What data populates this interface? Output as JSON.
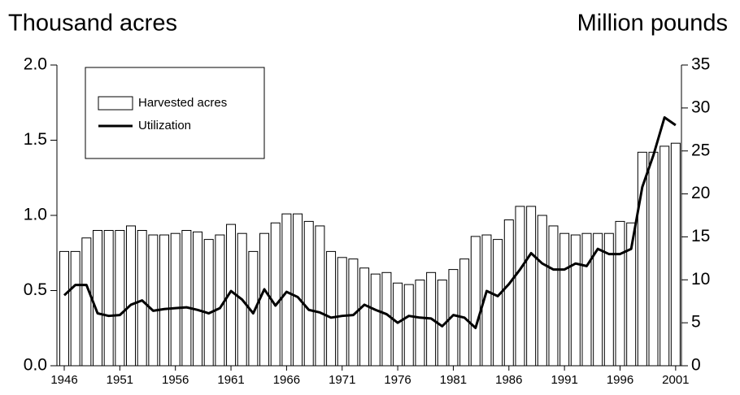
{
  "chart_data": {
    "type": "bar",
    "y_label": "Thousand acres",
    "y2_label": "Million pounds",
    "categories": [
      "1946",
      null,
      null,
      null,
      null,
      "1951",
      null,
      null,
      null,
      null,
      "1956",
      null,
      null,
      null,
      null,
      "1961",
      null,
      null,
      null,
      null,
      "1966",
      null,
      null,
      null,
      null,
      "1971",
      null,
      null,
      null,
      null,
      "1976",
      null,
      null,
      null,
      null,
      "1981",
      null,
      null,
      null,
      null,
      "1986",
      null,
      null,
      null,
      null,
      "1991",
      null,
      null,
      null,
      null,
      "1996",
      null,
      null,
      null,
      null,
      "2001"
    ],
    "series": [
      {
        "name": "Harvested acres",
        "type": "bar",
        "axis": "y",
        "color": "#ffffff",
        "values": [
          0.76,
          0.76,
          0.85,
          0.9,
          0.9,
          0.9,
          0.93,
          0.9,
          0.87,
          0.87,
          0.88,
          0.9,
          0.89,
          0.84,
          0.87,
          0.94,
          0.88,
          0.76,
          0.88,
          0.95,
          1.01,
          1.01,
          0.96,
          0.93,
          0.76,
          0.72,
          0.71,
          0.65,
          0.61,
          0.62,
          0.55,
          0.54,
          0.57,
          0.62,
          0.57,
          0.64,
          0.71,
          0.86,
          0.87,
          0.84,
          0.97,
          1.06,
          1.06,
          1.0,
          0.93,
          0.88,
          0.87,
          0.88,
          0.88,
          0.88,
          0.96,
          0.95,
          1.42,
          1.42,
          1.46,
          1.48
        ]
      },
      {
        "name": "Utilization",
        "type": "line",
        "axis": "y2",
        "color": "#000000",
        "values": [
          8.2,
          9.4,
          9.4,
          6.1,
          5.8,
          5.9,
          7.1,
          7.6,
          6.4,
          6.6,
          6.7,
          6.8,
          6.5,
          6.1,
          6.7,
          8.7,
          7.7,
          6.1,
          8.9,
          7.0,
          8.6,
          8.0,
          6.5,
          6.2,
          5.6,
          5.8,
          5.9,
          7.1,
          6.5,
          6.0,
          5.0,
          5.8,
          5.6,
          5.5,
          4.6,
          5.9,
          5.6,
          4.4,
          8.7,
          8.1,
          9.5,
          11.2,
          13.1,
          11.9,
          11.2,
          11.2,
          11.9,
          11.6,
          13.6,
          13.0,
          13.0,
          13.6,
          20.8,
          24.5,
          28.9,
          28.0
        ]
      }
    ],
    "ylim": [
      0,
      2.0
    ],
    "yticks": [
      {
        "value": 0,
        "label": "0.0"
      },
      {
        "value": 0.5,
        "label": "0.5"
      },
      {
        "value": 1.0,
        "label": "1.0"
      },
      {
        "value": 1.5,
        "label": "1.5"
      },
      {
        "value": 2.0,
        "label": "2.0"
      }
    ],
    "y2lim": [
      0,
      35
    ],
    "y2ticks": [
      0,
      5,
      10,
      15,
      20,
      25,
      30,
      35
    ],
    "legend": "upper left"
  }
}
